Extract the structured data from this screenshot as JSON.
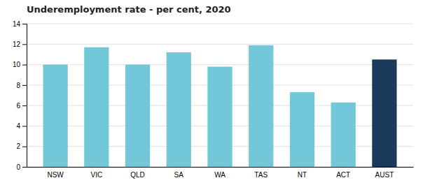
{
  "chart_data": {
    "type": "bar",
    "title": "Underemployment rate - per cent, 2020",
    "categories": [
      "NSW",
      "VIC",
      "QLD",
      "SA",
      "WA",
      "TAS",
      "NT",
      "ACT",
      "AUST"
    ],
    "values": [
      10.0,
      11.7,
      10.0,
      11.2,
      9.8,
      11.9,
      7.3,
      6.3,
      10.5
    ],
    "colors": [
      "#72c8d8",
      "#72c8d8",
      "#72c8d8",
      "#72c8d8",
      "#72c8d8",
      "#72c8d8",
      "#72c8d8",
      "#72c8d8",
      "#1a3a5c"
    ],
    "ylim": [
      0,
      14
    ],
    "yticks": [
      0,
      2,
      4,
      6,
      8,
      10,
      12,
      14
    ],
    "grid": true
  }
}
